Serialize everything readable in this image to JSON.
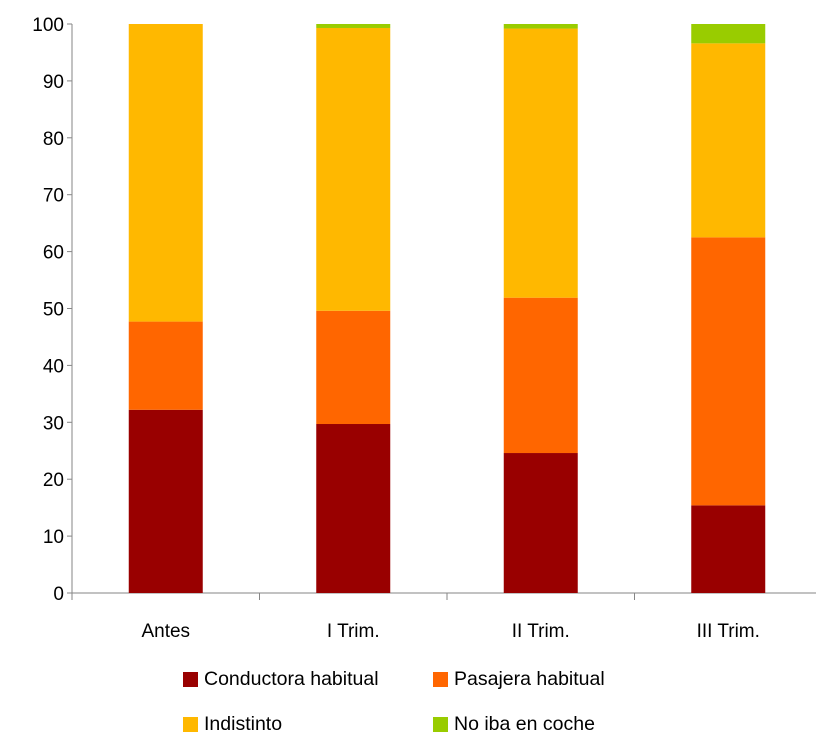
{
  "chart_data": {
    "type": "bar",
    "stacked": true,
    "categories": [
      "Antes",
      "I Trim.",
      "II Trim.",
      "III Trim."
    ],
    "series": [
      {
        "name": "Conductora habitual",
        "color": "#990000",
        "values": [
          32.2,
          29.7,
          24.6,
          15.4
        ]
      },
      {
        "name": "Pasajera habitual",
        "color": "#FF6600",
        "values": [
          15.5,
          19.9,
          27.3,
          47.1
        ]
      },
      {
        "name": "Indistinto",
        "color": "#FFB800",
        "values": [
          52.3,
          49.7,
          47.3,
          34.1
        ]
      },
      {
        "name": "No iba en coche",
        "color": "#99CC00",
        "values": [
          0.0,
          0.7,
          0.8,
          3.4
        ]
      }
    ],
    "ylim": [
      0,
      100
    ],
    "yticks": [
      0,
      10,
      20,
      30,
      40,
      50,
      60,
      70,
      80,
      90,
      100
    ],
    "legend_position": "bottom",
    "grid": false
  }
}
